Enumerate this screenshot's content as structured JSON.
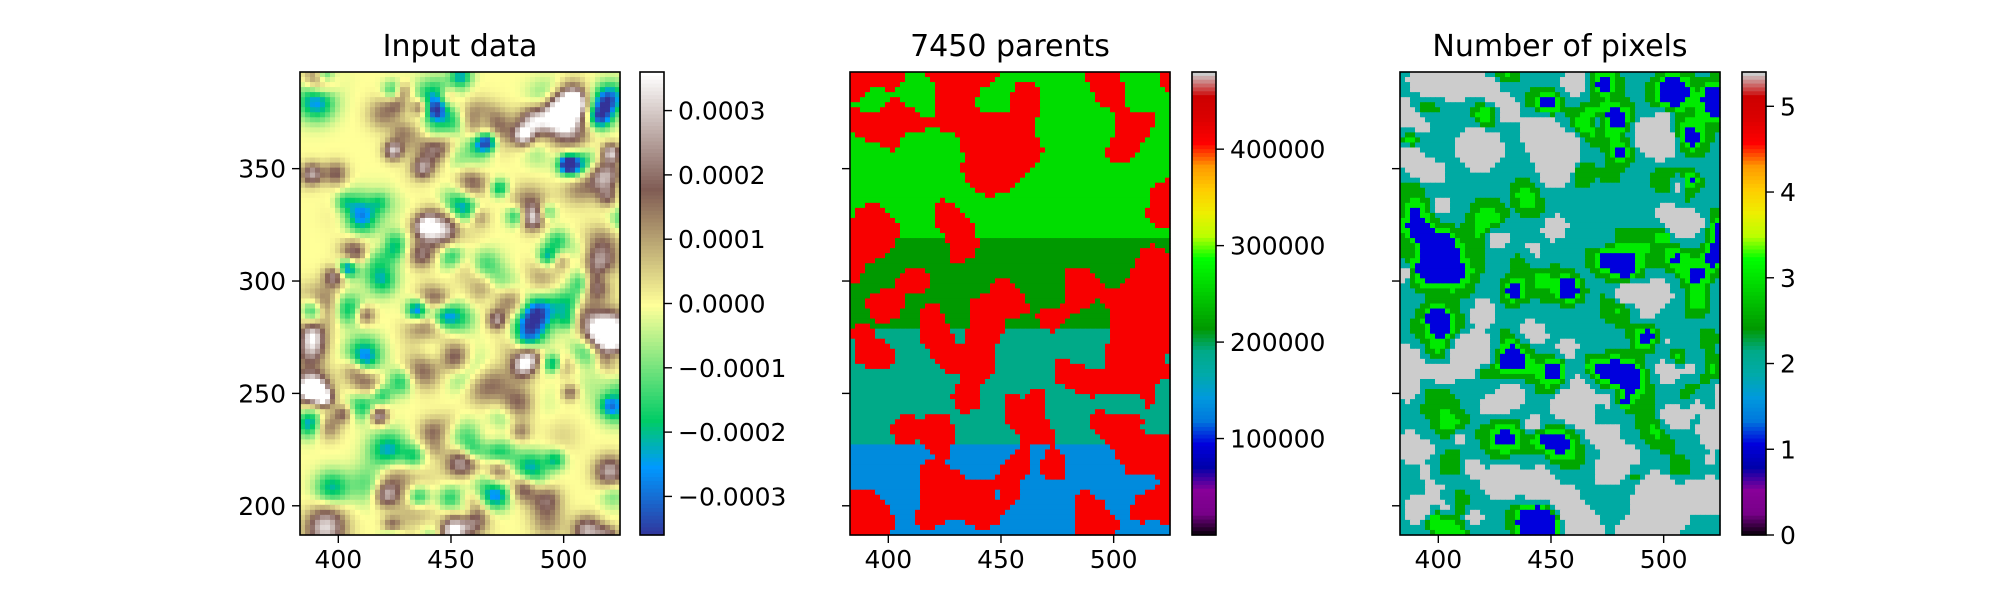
{
  "chart_data": [
    {
      "type": "heatmap",
      "title": "Input data",
      "xlim": [
        383,
        525
      ],
      "ylim": [
        187,
        393
      ],
      "xticks": [
        400,
        450,
        500
      ],
      "yticks": [
        200,
        250,
        300,
        350
      ],
      "show_y_tick_labels": true,
      "colormap": "terrain",
      "colorbar": {
        "range": [
          -0.00036,
          0.00036
        ],
        "ticks": [
          -0.0003,
          -0.0002,
          -0.0001,
          0.0,
          0.0001,
          0.0002,
          0.0003
        ],
        "tick_labels": [
          "−0.0003",
          "−0.0002",
          "−0.0001",
          "0.0000",
          "0.0001",
          "0.0002",
          "0.0003"
        ]
      }
    },
    {
      "type": "heatmap",
      "title": "7450 parents",
      "xlim": [
        383,
        525
      ],
      "ylim": [
        187,
        393
      ],
      "xticks": [
        400,
        450,
        500
      ],
      "yticks": [
        200,
        250,
        300,
        350
      ],
      "show_y_tick_labels": false,
      "colormap": "nipy_spectral",
      "colorbar": {
        "range": [
          0,
          480000
        ],
        "ticks": [
          100000,
          200000,
          300000,
          400000
        ],
        "tick_labels": [
          "100000",
          "200000",
          "300000",
          "400000"
        ]
      }
    },
    {
      "type": "heatmap",
      "title": "Number of pixels",
      "xlim": [
        383,
        525
      ],
      "ylim": [
        187,
        393
      ],
      "xticks": [
        400,
        450,
        500
      ],
      "yticks": [
        200,
        250,
        300,
        350
      ],
      "show_y_tick_labels": false,
      "colormap": "nipy_spectral",
      "colorbar": {
        "range": [
          0,
          5.4
        ],
        "ticks": [
          0,
          1,
          2,
          3,
          4,
          5
        ],
        "tick_labels": [
          "0",
          "1",
          "2",
          "3",
          "4",
          "5"
        ]
      }
    }
  ]
}
